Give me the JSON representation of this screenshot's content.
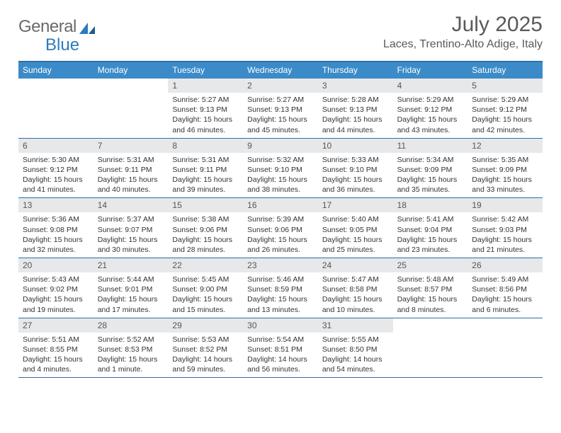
{
  "logo": {
    "text1": "General",
    "text2": "Blue"
  },
  "title": "July 2025",
  "location": "Laces, Trentino-Alto Adige, Italy",
  "colors": {
    "header_bar": "#3b8bc8",
    "border": "#2f6ea8",
    "daynum_bg": "#e7e8ea",
    "logo_gray": "#6a6a6a",
    "logo_blue": "#2b7bbf"
  },
  "weekdays": [
    "Sunday",
    "Monday",
    "Tuesday",
    "Wednesday",
    "Thursday",
    "Friday",
    "Saturday"
  ],
  "weeks": [
    [
      {
        "n": "",
        "sr": "",
        "ss": "",
        "dl": ""
      },
      {
        "n": "",
        "sr": "",
        "ss": "",
        "dl": ""
      },
      {
        "n": "1",
        "sr": "5:27 AM",
        "ss": "9:13 PM",
        "dl": "15 hours and 46 minutes."
      },
      {
        "n": "2",
        "sr": "5:27 AM",
        "ss": "9:13 PM",
        "dl": "15 hours and 45 minutes."
      },
      {
        "n": "3",
        "sr": "5:28 AM",
        "ss": "9:13 PM",
        "dl": "15 hours and 44 minutes."
      },
      {
        "n": "4",
        "sr": "5:29 AM",
        "ss": "9:12 PM",
        "dl": "15 hours and 43 minutes."
      },
      {
        "n": "5",
        "sr": "5:29 AM",
        "ss": "9:12 PM",
        "dl": "15 hours and 42 minutes."
      }
    ],
    [
      {
        "n": "6",
        "sr": "5:30 AM",
        "ss": "9:12 PM",
        "dl": "15 hours and 41 minutes."
      },
      {
        "n": "7",
        "sr": "5:31 AM",
        "ss": "9:11 PM",
        "dl": "15 hours and 40 minutes."
      },
      {
        "n": "8",
        "sr": "5:31 AM",
        "ss": "9:11 PM",
        "dl": "15 hours and 39 minutes."
      },
      {
        "n": "9",
        "sr": "5:32 AM",
        "ss": "9:10 PM",
        "dl": "15 hours and 38 minutes."
      },
      {
        "n": "10",
        "sr": "5:33 AM",
        "ss": "9:10 PM",
        "dl": "15 hours and 36 minutes."
      },
      {
        "n": "11",
        "sr": "5:34 AM",
        "ss": "9:09 PM",
        "dl": "15 hours and 35 minutes."
      },
      {
        "n": "12",
        "sr": "5:35 AM",
        "ss": "9:09 PM",
        "dl": "15 hours and 33 minutes."
      }
    ],
    [
      {
        "n": "13",
        "sr": "5:36 AM",
        "ss": "9:08 PM",
        "dl": "15 hours and 32 minutes."
      },
      {
        "n": "14",
        "sr": "5:37 AM",
        "ss": "9:07 PM",
        "dl": "15 hours and 30 minutes."
      },
      {
        "n": "15",
        "sr": "5:38 AM",
        "ss": "9:06 PM",
        "dl": "15 hours and 28 minutes."
      },
      {
        "n": "16",
        "sr": "5:39 AM",
        "ss": "9:06 PM",
        "dl": "15 hours and 26 minutes."
      },
      {
        "n": "17",
        "sr": "5:40 AM",
        "ss": "9:05 PM",
        "dl": "15 hours and 25 minutes."
      },
      {
        "n": "18",
        "sr": "5:41 AM",
        "ss": "9:04 PM",
        "dl": "15 hours and 23 minutes."
      },
      {
        "n": "19",
        "sr": "5:42 AM",
        "ss": "9:03 PM",
        "dl": "15 hours and 21 minutes."
      }
    ],
    [
      {
        "n": "20",
        "sr": "5:43 AM",
        "ss": "9:02 PM",
        "dl": "15 hours and 19 minutes."
      },
      {
        "n": "21",
        "sr": "5:44 AM",
        "ss": "9:01 PM",
        "dl": "15 hours and 17 minutes."
      },
      {
        "n": "22",
        "sr": "5:45 AM",
        "ss": "9:00 PM",
        "dl": "15 hours and 15 minutes."
      },
      {
        "n": "23",
        "sr": "5:46 AM",
        "ss": "8:59 PM",
        "dl": "15 hours and 13 minutes."
      },
      {
        "n": "24",
        "sr": "5:47 AM",
        "ss": "8:58 PM",
        "dl": "15 hours and 10 minutes."
      },
      {
        "n": "25",
        "sr": "5:48 AM",
        "ss": "8:57 PM",
        "dl": "15 hours and 8 minutes."
      },
      {
        "n": "26",
        "sr": "5:49 AM",
        "ss": "8:56 PM",
        "dl": "15 hours and 6 minutes."
      }
    ],
    [
      {
        "n": "27",
        "sr": "5:51 AM",
        "ss": "8:55 PM",
        "dl": "15 hours and 4 minutes."
      },
      {
        "n": "28",
        "sr": "5:52 AM",
        "ss": "8:53 PM",
        "dl": "15 hours and 1 minute."
      },
      {
        "n": "29",
        "sr": "5:53 AM",
        "ss": "8:52 PM",
        "dl": "14 hours and 59 minutes."
      },
      {
        "n": "30",
        "sr": "5:54 AM",
        "ss": "8:51 PM",
        "dl": "14 hours and 56 minutes."
      },
      {
        "n": "31",
        "sr": "5:55 AM",
        "ss": "8:50 PM",
        "dl": "14 hours and 54 minutes."
      },
      {
        "n": "",
        "sr": "",
        "ss": "",
        "dl": ""
      },
      {
        "n": "",
        "sr": "",
        "ss": "",
        "dl": ""
      }
    ]
  ],
  "labels": {
    "sunrise": "Sunrise: ",
    "sunset": "Sunset: ",
    "daylight": "Daylight: "
  }
}
